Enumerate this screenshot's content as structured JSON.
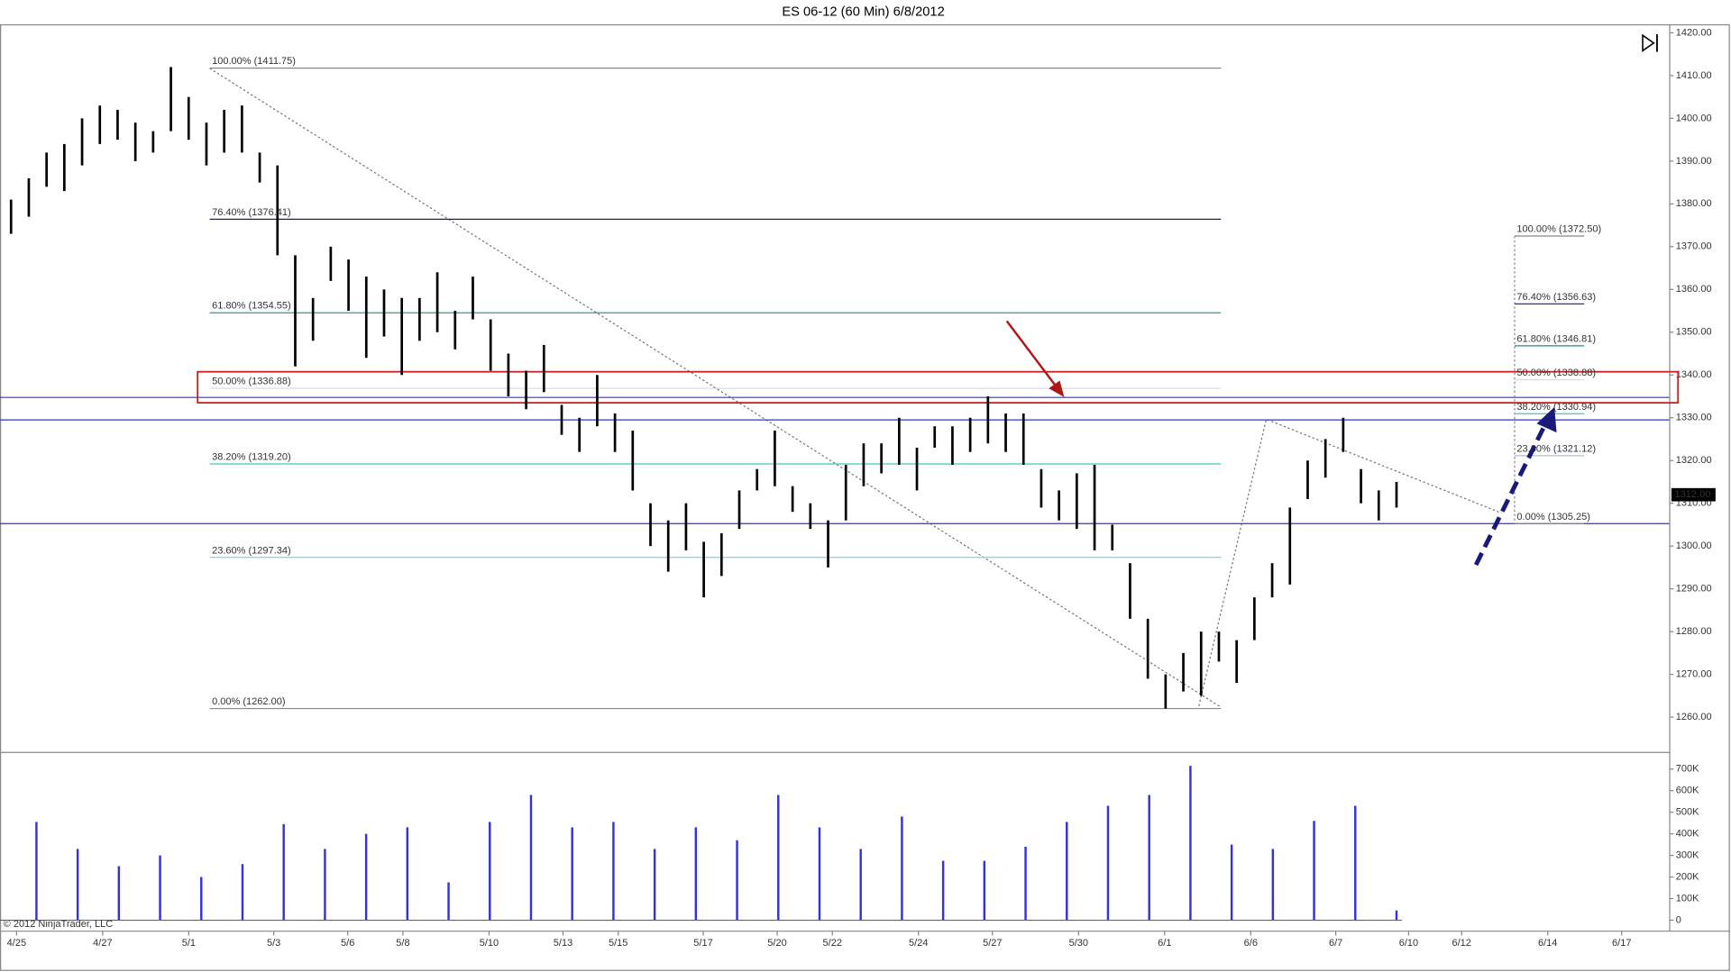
{
  "chart_data": {
    "type": "ohlc",
    "title": "ES 06-12 (60 Min)  6/8/2012",
    "copyright": "© 2012 NinjaTrader, LLC",
    "categories": [
      "4/25",
      "4/27",
      "5/1",
      "5/3",
      "5/6",
      "5/8",
      "5/10",
      "5/13",
      "5/15",
      "5/17",
      "5/20",
      "5/22",
      "5/24",
      "5/27",
      "5/30",
      "6/1",
      "6/6",
      "6/7",
      "6/10",
      "6/12",
      "6/14",
      "6/17"
    ],
    "color": "#000000",
    "high": [
      1381,
      1386,
      1392,
      1394,
      1400,
      1403,
      1402,
      1399,
      1397,
      1412,
      1405,
      1399,
      1402,
      1403,
      1392,
      1389,
      1368,
      1358,
      1370,
      1367,
      1363,
      1360,
      1358,
      1358,
      1364,
      1355,
      1363,
      1353,
      1345,
      1341,
      1347,
      1333,
      1330,
      1340,
      1331,
      1327,
      1310,
      1306,
      1310,
      1301,
      1303,
      1313,
      1318,
      1327,
      1314,
      1310,
      1306,
      1319,
      1324,
      1324,
      1330,
      1323,
      1328,
      1328,
      1330,
      1335,
      1331,
      1331,
      1318,
      1313,
      1317,
      1319,
      1305,
      1296,
      1283,
      1270,
      1275,
      1280,
      1280,
      1278,
      1288,
      1296,
      1309,
      1320,
      1325,
      1330,
      1318,
      1313,
      1315
    ],
    "low": [
      1373,
      1377,
      1384,
      1383,
      1389,
      1394,
      1395,
      1390,
      1392,
      1397,
      1395,
      1389,
      1392,
      1392,
      1385,
      1368,
      1342,
      1348,
      1362,
      1355,
      1344,
      1349,
      1340,
      1348,
      1350,
      1346,
      1353,
      1341,
      1335,
      1332,
      1336,
      1326,
      1322,
      1328,
      1322,
      1313,
      1300,
      1294,
      1299,
      1288,
      1293,
      1304,
      1313,
      1314,
      1308,
      1304,
      1295,
      1306,
      1314,
      1317,
      1319,
      1313,
      1323,
      1319,
      1322,
      1324,
      1322,
      1319,
      1309,
      1306,
      1304,
      1299,
      1299,
      1283,
      1269,
      1262,
      1266,
      1265,
      1273,
      1268,
      1278,
      1288,
      1291,
      1311,
      1316,
      1322,
      1310,
      1306,
      1309
    ],
    "ylim": [
      1252,
      1422
    ],
    "yticks": [
      {
        "value": 1260,
        "label": "1260.00"
      },
      {
        "value": 1270,
        "label": "1270.00"
      },
      {
        "value": 1280,
        "label": "1280.00"
      },
      {
        "value": 1290,
        "label": "1290.00"
      },
      {
        "value": 1300,
        "label": "1300.00"
      },
      {
        "value": 1310,
        "label": "1310.00"
      },
      {
        "value": 1320,
        "label": "1320.00"
      },
      {
        "value": 1330,
        "label": "1330.00"
      },
      {
        "value": 1340,
        "label": "1340.00"
      },
      {
        "value": 1350,
        "label": "1350.00"
      },
      {
        "value": 1360,
        "label": "1360.00"
      },
      {
        "value": 1370,
        "label": "1370.00"
      },
      {
        "value": 1380,
        "label": "1380.00"
      },
      {
        "value": 1390,
        "label": "1390.00"
      },
      {
        "value": 1400,
        "label": "1400.00"
      },
      {
        "value": 1410,
        "label": "1410.00"
      },
      {
        "value": 1420,
        "label": "1420.00"
      }
    ],
    "last_price": {
      "value": 1312,
      "label": "1312.00"
    },
    "horizontal_lines": {
      "color": "#3333cc",
      "values": [
        1334.75,
        1329.5,
        1305.25
      ]
    },
    "zone": {
      "color": "#cc2222",
      "values": [
        1333.5,
        1340.75
      ]
    },
    "fibs": [
      {
        "levels": [
          {
            "label": "100.00% (1411.75)",
            "value": 1411.75,
            "color": "#888888"
          },
          {
            "label": "76.40% (1376.41)",
            "value": 1376.41,
            "color": "#1a1a8c"
          },
          {
            "label": "61.80% (1354.55)",
            "value": 1354.55,
            "color": "#1a8c8c"
          },
          {
            "label": "50.00% (1336.88)",
            "value": 1336.88,
            "color": "#d8d8d8"
          },
          {
            "label": "38.20% (1319.20)",
            "value": 1319.2,
            "color": "#40c8c0"
          },
          {
            "label": "23.60% (1297.34)",
            "value": 1297.34,
            "color": "#a8c0d0"
          },
          {
            "label": "0.00% (1262.00)",
            "value": 1262,
            "color": "#888888"
          }
        ]
      },
      {
        "levels": [
          {
            "label": "100.00% (1372.50)",
            "value": 1372.5,
            "color": "#888888"
          },
          {
            "label": "76.40% (1356.63)",
            "value": 1356.63,
            "color": "#1a1a8c"
          },
          {
            "label": "61.80% (1346.81)",
            "value": 1346.81,
            "color": "#1a8c8c"
          },
          {
            "label": "50.00% (1338.88)",
            "value": 1338.88,
            "color": "#d8d8d8"
          },
          {
            "label": "38.20% (1330.94)",
            "value": 1330.94,
            "color": "#40c8c0"
          },
          {
            "label": "23.60% (1321.12)",
            "value": 1321.12,
            "color": "#a8c0d0"
          },
          {
            "label": "0.00% (1305.25)",
            "value": 1305.25,
            "color": "#888888"
          }
        ]
      }
    ],
    "volume": {
      "color": "#3333dd",
      "values": [
        455000,
        330000,
        250000,
        300000,
        200000,
        260000,
        445000,
        330000,
        400000,
        430000,
        175000,
        455000,
        580000,
        430000,
        455000,
        330000,
        430000,
        370000,
        580000,
        430000,
        330000,
        480000,
        275000,
        275000,
        340000,
        455000,
        530000,
        580000,
        715000,
        350000,
        330000,
        460000,
        530000,
        45000
      ],
      "ylim": [
        -46000,
        772000
      ],
      "yticks": [
        0,
        {
          "value": 100000,
          "label": "100K"
        },
        {
          "value": 200000,
          "label": "200K"
        },
        {
          "value": 300000,
          "label": "300K"
        },
        {
          "value": 400000,
          "label": "400K"
        },
        {
          "value": 500000,
          "label": "500K"
        },
        {
          "value": 600000,
          "label": "600K"
        },
        {
          "value": 700000,
          "label": "700K"
        }
      ]
    }
  }
}
